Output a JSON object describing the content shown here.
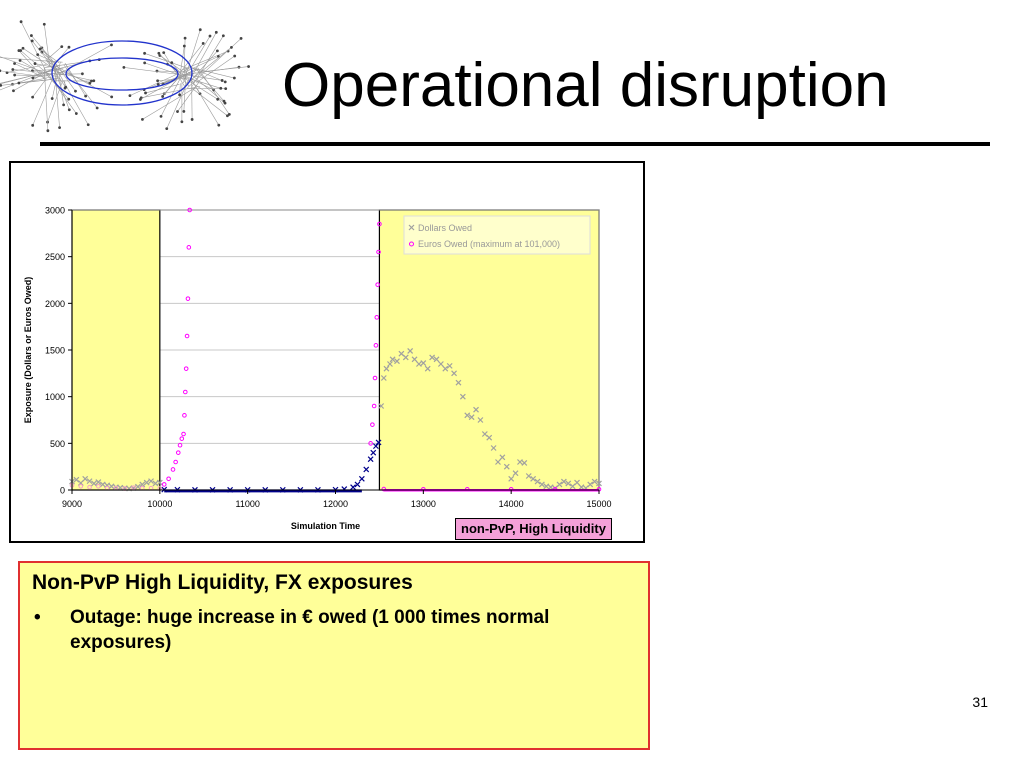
{
  "slide": {
    "title": "Operational disruption",
    "page_number": "31"
  },
  "colors": {
    "shaded_region": "#ffff99",
    "dollars_owed_in_shade": "#a0a0a0",
    "dollars_owed_outside": "#00008b",
    "euros_owed": "#ff00ff",
    "label_badge": "#f4a0d8",
    "notes_border": "#e03030"
  },
  "chart_caption": "non-PvP, High Liquidity",
  "chart_data": {
    "type": "scatter",
    "xlabel": "Simulation Time",
    "ylabel": "Exposure (Dollars or Euros Owed)",
    "xlim": [
      9000,
      15000
    ],
    "ylim": [
      0,
      3000
    ],
    "x_ticks": [
      9000,
      10000,
      11000,
      12000,
      13000,
      14000,
      15000
    ],
    "y_ticks": [
      0,
      500,
      1000,
      1500,
      2000,
      2500,
      3000
    ],
    "grid": "horizontal",
    "legend_position": "top-right",
    "shaded_regions": [
      [
        9000,
        10000
      ],
      [
        12500,
        15000
      ]
    ],
    "series": [
      {
        "name": "Dollars Owed",
        "marker": "x",
        "points": [
          [
            9000,
            90
          ],
          [
            9050,
            110
          ],
          [
            9100,
            75
          ],
          [
            9150,
            120
          ],
          [
            9200,
            95
          ],
          [
            9250,
            70
          ],
          [
            9300,
            85
          ],
          [
            9350,
            60
          ],
          [
            9400,
            50
          ],
          [
            9450,
            40
          ],
          [
            9500,
            30
          ],
          [
            9550,
            25
          ],
          [
            9600,
            20
          ],
          [
            9650,
            15
          ],
          [
            9700,
            20
          ],
          [
            9750,
            35
          ],
          [
            9800,
            60
          ],
          [
            9850,
            80
          ],
          [
            9900,
            95
          ],
          [
            9950,
            70
          ],
          [
            10000,
            80
          ],
          [
            10050,
            5
          ],
          [
            10200,
            3
          ],
          [
            10400,
            2
          ],
          [
            10600,
            2
          ],
          [
            10800,
            2
          ],
          [
            11000,
            2
          ],
          [
            11200,
            2
          ],
          [
            11400,
            2
          ],
          [
            11600,
            2
          ],
          [
            11800,
            2
          ],
          [
            12000,
            4
          ],
          [
            12100,
            10
          ],
          [
            12200,
            30
          ],
          [
            12250,
            60
          ],
          [
            12300,
            120
          ],
          [
            12350,
            220
          ],
          [
            12400,
            330
          ],
          [
            12430,
            400
          ],
          [
            12460,
            470
          ],
          [
            12490,
            510
          ],
          [
            12520,
            900
          ],
          [
            12550,
            1200
          ],
          [
            12580,
            1300
          ],
          [
            12620,
            1350
          ],
          [
            12650,
            1400
          ],
          [
            12700,
            1380
          ],
          [
            12750,
            1460
          ],
          [
            12800,
            1420
          ],
          [
            12850,
            1490
          ],
          [
            12900,
            1400
          ],
          [
            12950,
            1350
          ],
          [
            13000,
            1360
          ],
          [
            13050,
            1300
          ],
          [
            13100,
            1420
          ],
          [
            13150,
            1400
          ],
          [
            13200,
            1350
          ],
          [
            13250,
            1300
          ],
          [
            13300,
            1330
          ],
          [
            13350,
            1250
          ],
          [
            13400,
            1150
          ],
          [
            13450,
            1000
          ],
          [
            13500,
            800
          ],
          [
            13550,
            780
          ],
          [
            13600,
            860
          ],
          [
            13650,
            750
          ],
          [
            13700,
            600
          ],
          [
            13750,
            560
          ],
          [
            13800,
            450
          ],
          [
            13850,
            300
          ],
          [
            13900,
            350
          ],
          [
            13950,
            250
          ],
          [
            14000,
            120
          ],
          [
            14050,
            180
          ],
          [
            14100,
            300
          ],
          [
            14150,
            290
          ],
          [
            14200,
            150
          ],
          [
            14250,
            120
          ],
          [
            14300,
            90
          ],
          [
            14350,
            60
          ],
          [
            14400,
            40
          ],
          [
            14450,
            30
          ],
          [
            14500,
            20
          ],
          [
            14550,
            60
          ],
          [
            14600,
            90
          ],
          [
            14650,
            70
          ],
          [
            14700,
            40
          ],
          [
            14750,
            80
          ],
          [
            14800,
            30
          ],
          [
            14850,
            20
          ],
          [
            14900,
            60
          ],
          [
            14950,
            90
          ],
          [
            15000,
            70
          ]
        ]
      },
      {
        "name": "Euros Owed (maximum at 101,000)",
        "marker": "o",
        "points": [
          [
            9000,
            50
          ],
          [
            9100,
            40
          ],
          [
            9200,
            30
          ],
          [
            9300,
            40
          ],
          [
            9400,
            20
          ],
          [
            9500,
            20
          ],
          [
            9600,
            15
          ],
          [
            9700,
            25
          ],
          [
            9800,
            20
          ],
          [
            9900,
            20
          ],
          [
            10000,
            15
          ],
          [
            10050,
            60
          ],
          [
            10100,
            120
          ],
          [
            10150,
            220
          ],
          [
            10180,
            300
          ],
          [
            10210,
            400
          ],
          [
            10230,
            480
          ],
          [
            10250,
            550
          ],
          [
            10270,
            600
          ],
          [
            10280,
            800
          ],
          [
            10290,
            1050
          ],
          [
            10300,
            1300
          ],
          [
            10310,
            1650
          ],
          [
            10320,
            2050
          ],
          [
            10330,
            2600
          ],
          [
            10340,
            3000
          ],
          [
            12400,
            500
          ],
          [
            12420,
            700
          ],
          [
            12440,
            900
          ],
          [
            12450,
            1200
          ],
          [
            12460,
            1550
          ],
          [
            12470,
            1850
          ],
          [
            12480,
            2200
          ],
          [
            12490,
            2550
          ],
          [
            12500,
            2850
          ],
          [
            12550,
            10
          ],
          [
            13000,
            8
          ],
          [
            13500,
            8
          ],
          [
            14000,
            8
          ],
          [
            14500,
            8
          ],
          [
            15000,
            8
          ]
        ]
      }
    ]
  },
  "notes": {
    "heading": "Non-PvP High Liquidity, FX exposures",
    "bullet_symbol": "•",
    "bullet_text": "Outage: huge increase in € owed (1 000 times normal exposures)"
  }
}
